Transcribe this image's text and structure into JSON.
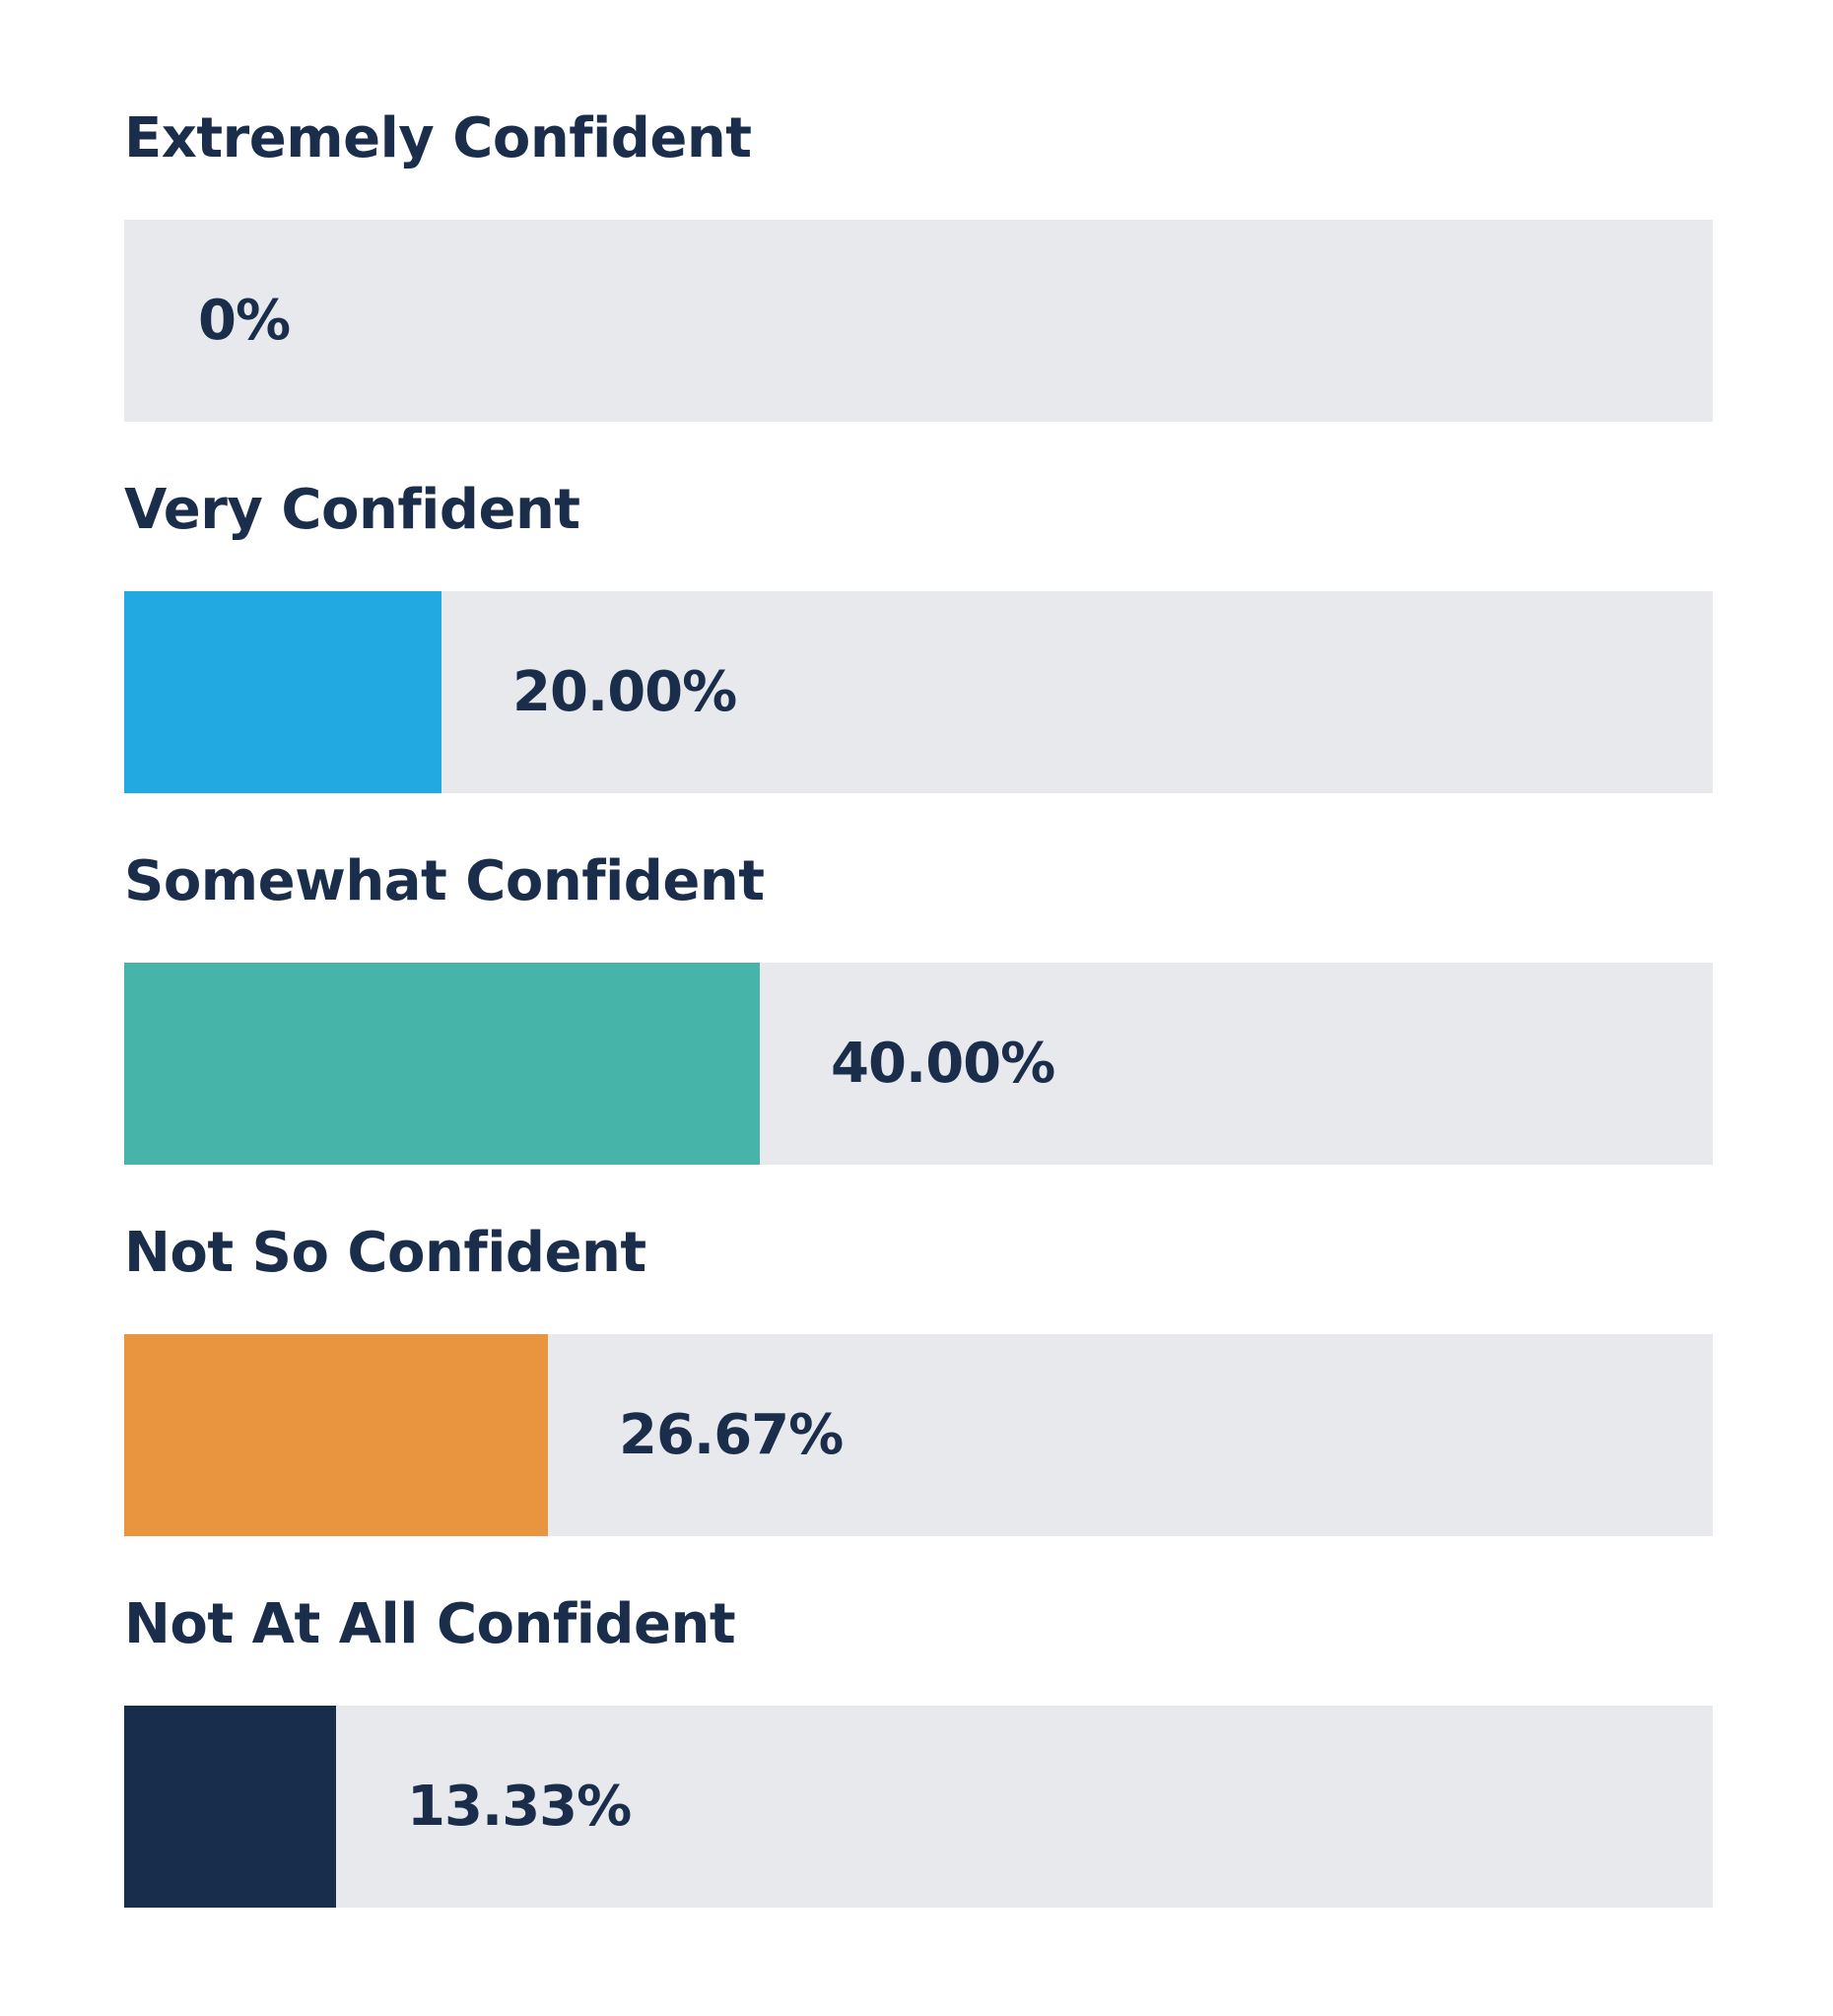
{
  "chart_data": {
    "type": "bar",
    "orientation": "horizontal",
    "categories": [
      "Extremely Confident",
      "Very Confident",
      "Somewhat Confident",
      "Not So Confident",
      "Not At All Confident"
    ],
    "values": [
      0,
      20.0,
      40.0,
      26.67,
      13.33
    ],
    "value_labels": [
      "0%",
      "20.00%",
      "40.00%",
      "26.67%",
      "13.33%"
    ],
    "colors": [
      "#22a9e1",
      "#22a9e1",
      "#47b4aa",
      "#e9943e",
      "#182d4b"
    ],
    "xlim": [
      0,
      100
    ],
    "grid": false,
    "legend": "none"
  }
}
